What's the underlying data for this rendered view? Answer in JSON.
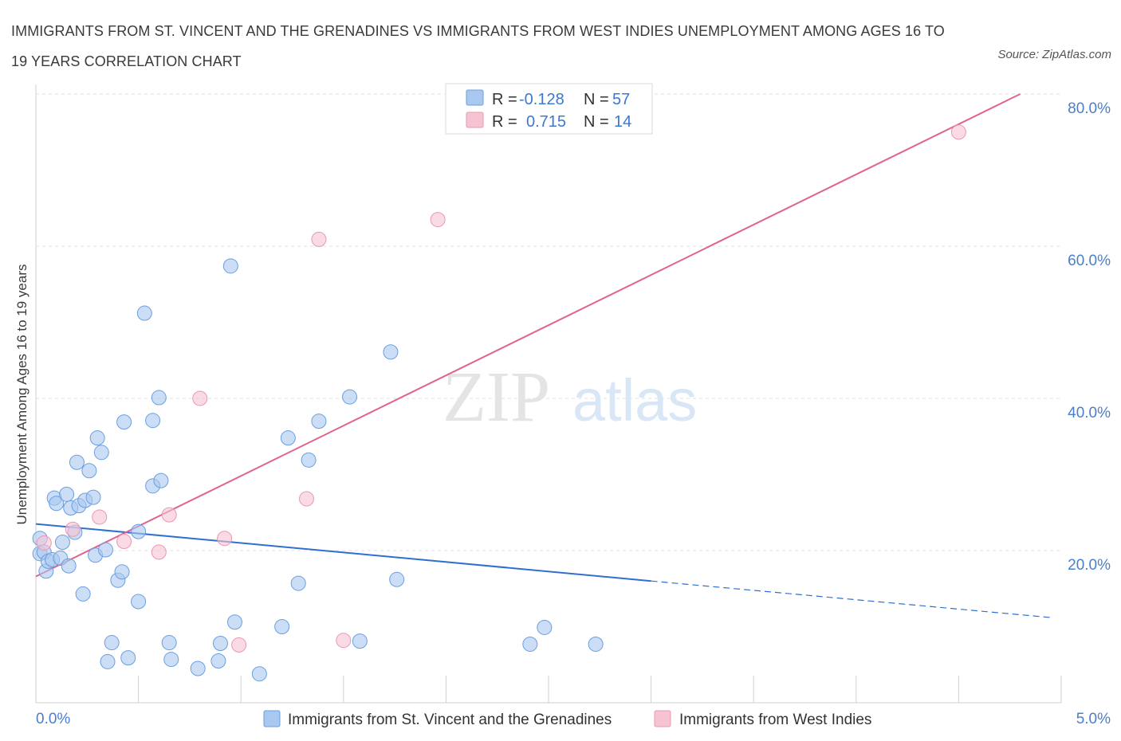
{
  "title": "IMMIGRANTS FROM ST. VINCENT AND THE GRENADINES VS IMMIGRANTS FROM WEST INDIES UNEMPLOYMENT AMONG AGES 16 TO 19 YEARS CORRELATION CHART",
  "source": "Source: ZipAtlas.com",
  "watermark": {
    "zip": "ZIP",
    "atlas": "atlas"
  },
  "legend": {
    "r_label": "R =",
    "n_label": "N =",
    "rows": [
      {
        "r": "-0.128",
        "n": "57",
        "color": "#a9c8f0",
        "edge": "#6a9ee0"
      },
      {
        "r": "0.715",
        "n": "14",
        "color": "#f7c3d3",
        "edge": "#e898b2"
      }
    ]
  },
  "chart_data": {
    "type": "scatter",
    "title": "IMMIGRANTS FROM ST. VINCENT AND THE GRENADINES VS IMMIGRANTS FROM WEST INDIES UNEMPLOYMENT AMONG AGES 16 TO 19 YEARS CORRELATION CHART",
    "xlabel": "",
    "ylabel": "Unemployment Among Ages 16 to 19 years",
    "xlim": [
      0,
      5
    ],
    "ylim": [
      0,
      80
    ],
    "x_tick_labels": [
      "0.0%",
      "5.0%"
    ],
    "y_ticks": [
      20,
      40,
      60,
      80
    ],
    "y_tick_labels": [
      "20.0%",
      "40.0%",
      "60.0%",
      "80.0%"
    ],
    "grid": true,
    "legend_position": "top-center",
    "series": [
      {
        "name": "Immigrants from St. Vincent and the Grenadines",
        "color": "#a9c8f0",
        "edge": "#6a9ee0",
        "line_color": "#2f6fcf",
        "trend": {
          "x0": 0.0,
          "y0": 23.5,
          "x1": 3.0,
          "y1": 16.0,
          "x_dash_end": 4.95,
          "y_dash_end": 11.2
        },
        "points": [
          [
            0.02,
            21.6
          ],
          [
            0.02,
            19.6
          ],
          [
            0.04,
            19.8
          ],
          [
            0.05,
            17.3
          ],
          [
            0.06,
            18.6
          ],
          [
            0.08,
            18.8
          ],
          [
            0.09,
            26.9
          ],
          [
            0.1,
            26.2
          ],
          [
            0.12,
            19.0
          ],
          [
            0.13,
            21.1
          ],
          [
            0.15,
            27.4
          ],
          [
            0.16,
            18.0
          ],
          [
            0.17,
            25.6
          ],
          [
            0.19,
            22.4
          ],
          [
            0.2,
            31.6
          ],
          [
            0.21,
            25.9
          ],
          [
            0.23,
            14.3
          ],
          [
            0.24,
            26.6
          ],
          [
            0.26,
            30.5
          ],
          [
            0.28,
            27.0
          ],
          [
            0.29,
            19.4
          ],
          [
            0.3,
            34.8
          ],
          [
            0.32,
            32.9
          ],
          [
            0.34,
            20.1
          ],
          [
            0.35,
            5.4
          ],
          [
            0.37,
            7.9
          ],
          [
            0.4,
            16.1
          ],
          [
            0.42,
            17.2
          ],
          [
            0.43,
            36.9
          ],
          [
            0.45,
            5.9
          ],
          [
            0.5,
            13.3
          ],
          [
            0.5,
            22.5
          ],
          [
            0.53,
            51.2
          ],
          [
            0.57,
            37.1
          ],
          [
            0.57,
            28.5
          ],
          [
            0.6,
            40.1
          ],
          [
            0.61,
            29.2
          ],
          [
            0.65,
            7.9
          ],
          [
            0.66,
            5.7
          ],
          [
            0.79,
            4.5
          ],
          [
            0.89,
            5.5
          ],
          [
            0.9,
            7.8
          ],
          [
            0.95,
            57.4
          ],
          [
            0.97,
            10.6
          ],
          [
            1.09,
            3.8
          ],
          [
            1.2,
            10.0
          ],
          [
            1.23,
            34.8
          ],
          [
            1.28,
            15.7
          ],
          [
            1.33,
            31.9
          ],
          [
            1.38,
            37.0
          ],
          [
            1.53,
            40.2
          ],
          [
            1.58,
            8.1
          ],
          [
            1.73,
            46.1
          ],
          [
            1.76,
            16.2
          ],
          [
            2.41,
            7.7
          ],
          [
            2.48,
            9.9
          ],
          [
            2.73,
            7.7
          ]
        ]
      },
      {
        "name": "Immigrants from West Indies",
        "color": "#f7c3d3",
        "edge": "#e898b2",
        "line_color": "#e0628f",
        "trend": {
          "x0": 0.0,
          "y0": 16.6,
          "x1": 4.8,
          "y1": 80.0
        },
        "points": [
          [
            0.04,
            21.0
          ],
          [
            0.18,
            22.8
          ],
          [
            0.31,
            24.4
          ],
          [
            0.43,
            21.2
          ],
          [
            0.6,
            19.8
          ],
          [
            0.65,
            24.7
          ],
          [
            0.8,
            40.0
          ],
          [
            0.92,
            21.6
          ],
          [
            0.99,
            7.6
          ],
          [
            1.32,
            26.8
          ],
          [
            1.38,
            60.9
          ],
          [
            1.5,
            8.2
          ],
          [
            1.96,
            63.5
          ],
          [
            4.5,
            75.0
          ]
        ]
      }
    ]
  }
}
